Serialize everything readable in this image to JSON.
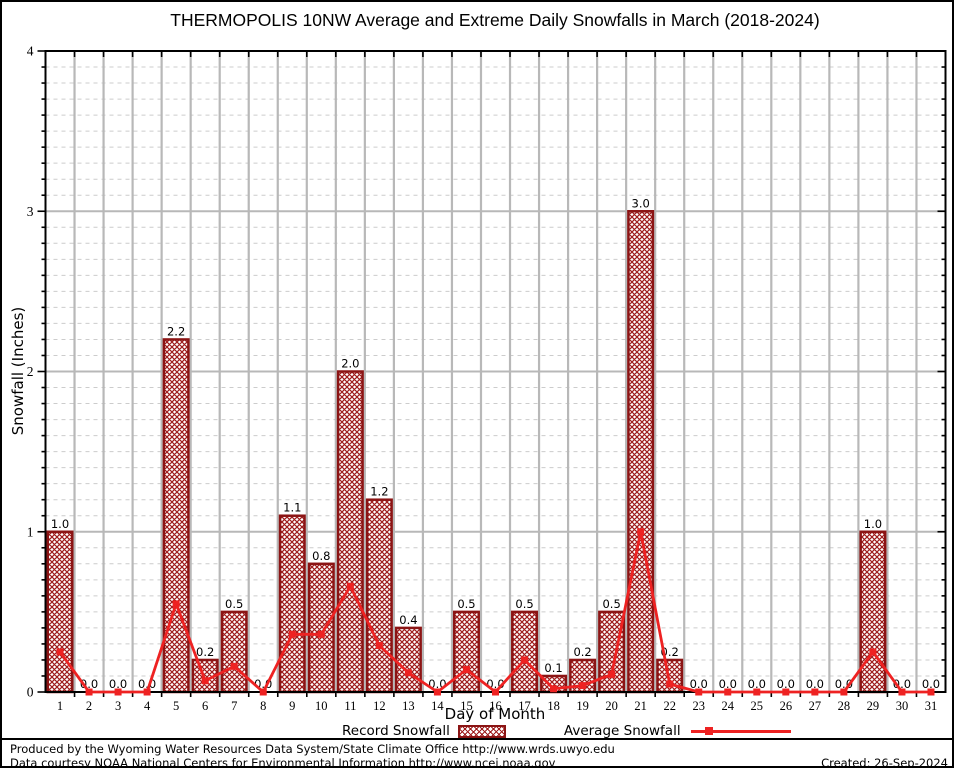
{
  "chart_data": {
    "type": "bar",
    "title": "THERMOPOLIS 10NW Average and Extreme Daily Snowfalls in March (2018-2024)",
    "xlabel": "Day of Month",
    "ylabel": "Snowfall (Inches)",
    "ylim": [
      0,
      4
    ],
    "yticks": [
      0,
      1,
      2,
      3,
      4
    ],
    "minor_y_step": 0.1,
    "grid": true,
    "legend_position": "bottom",
    "x": [
      1,
      2,
      3,
      4,
      5,
      6,
      7,
      8,
      9,
      10,
      11,
      12,
      13,
      14,
      15,
      16,
      17,
      18,
      19,
      20,
      21,
      22,
      23,
      24,
      25,
      26,
      27,
      28,
      29,
      30,
      31
    ],
    "series": [
      {
        "name": "Record Snowfall",
        "type": "bar",
        "values": [
          1.0,
          0.0,
          0.0,
          0.0,
          2.2,
          0.2,
          0.5,
          0.0,
          1.1,
          0.8,
          2.0,
          1.2,
          0.4,
          0.0,
          0.5,
          0.0,
          0.5,
          0.1,
          0.2,
          0.5,
          3.0,
          0.2,
          0.0,
          0.0,
          0.0,
          0.0,
          0.0,
          0.0,
          1.0,
          0.0,
          0.0
        ]
      },
      {
        "name": "Average Snowfall",
        "type": "line",
        "values": [
          0.25,
          0.0,
          0.0,
          0.0,
          0.55,
          0.07,
          0.16,
          0.0,
          0.36,
          0.36,
          0.66,
          0.29,
          0.12,
          0.0,
          0.14,
          0.0,
          0.2,
          0.02,
          0.04,
          0.11,
          1.0,
          0.05,
          0.0,
          0.0,
          0.0,
          0.0,
          0.0,
          0.0,
          0.25,
          0.0,
          0.0
        ]
      }
    ],
    "bar_labels": [
      "1.0",
      "0.0",
      "0.0",
      "0.0",
      "2.2",
      "0.2",
      "0.5",
      "0.0",
      "1.1",
      "0.8",
      "2.0",
      "1.2",
      "0.4",
      "0.0",
      "0.5",
      "0.0",
      "0.5",
      "0.1",
      "0.2",
      "0.5",
      "3.0",
      "0.2",
      "0.0",
      "0.0",
      "0.0",
      "0.0",
      "0.0",
      "0.0",
      "1.0",
      "0.0",
      "0.0"
    ],
    "colors": {
      "bar_border": "#8b1414",
      "bar_hatch": "#9e1b1b",
      "line": "#ee2222",
      "grid_major": "#b8b8b8",
      "grid_minor": "#cccccc",
      "axis": "#000000"
    }
  },
  "footer": {
    "line1": "Produced by the Wyoming Water Resources Data System/State Climate Office http://www.wrds.uwyo.edu",
    "line2": "Data courtesy NOAA National Centers for Environmental Information http://www.ncei.noaa.gov",
    "created": "Created: 26-Sep-2024"
  }
}
